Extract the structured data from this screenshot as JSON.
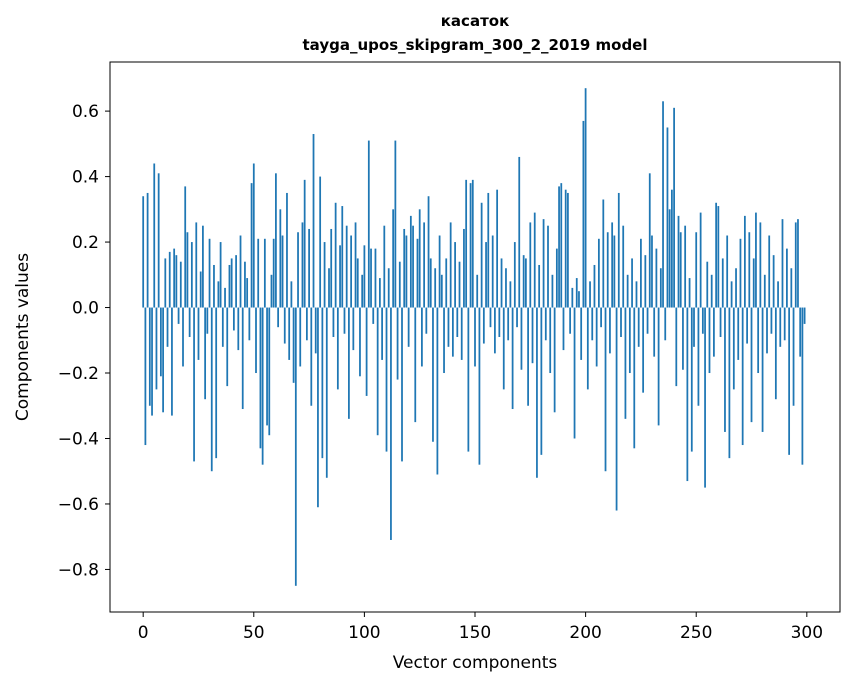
{
  "chart_data": {
    "type": "bar",
    "title_line1": "касаток",
    "title_line2": "tayga_upos_skipgram_300_2_2019 model",
    "xlabel": "Vector components",
    "ylabel": "Components values",
    "bar_color": "#1f77b4",
    "axis_color": "#000000",
    "background_color": "#ffffff",
    "xlim": [
      -15,
      315
    ],
    "ylim": [
      -0.93,
      0.75
    ],
    "xticks": [
      0,
      50,
      100,
      150,
      200,
      250,
      300
    ],
    "yticks": [
      -0.8,
      -0.6,
      -0.4,
      -0.2,
      0.0,
      0.2,
      0.4,
      0.6
    ],
    "x_start": 0,
    "bar_width": 0.8,
    "values": [
      0.34,
      -0.42,
      0.35,
      -0.3,
      -0.33,
      0.44,
      -0.25,
      0.41,
      -0.21,
      -0.32,
      0.15,
      -0.12,
      0.17,
      -0.33,
      0.18,
      0.16,
      -0.05,
      0.14,
      -0.18,
      0.37,
      0.23,
      -0.09,
      0.2,
      -0.47,
      0.26,
      -0.16,
      0.11,
      0.25,
      -0.28,
      -0.08,
      0.21,
      -0.5,
      0.13,
      -0.46,
      0.08,
      0.2,
      -0.12,
      0.06,
      -0.24,
      0.13,
      0.15,
      -0.07,
      0.16,
      -0.13,
      0.22,
      -0.31,
      0.14,
      0.09,
      -0.1,
      0.38,
      0.44,
      -0.2,
      0.21,
      -0.43,
      -0.48,
      0.21,
      -0.36,
      -0.39,
      0.1,
      0.21,
      0.41,
      -0.06,
      0.3,
      0.22,
      -0.11,
      0.35,
      -0.16,
      0.08,
      -0.23,
      -0.85,
      0.23,
      -0.18,
      0.26,
      0.39,
      -0.1,
      0.24,
      -0.3,
      0.53,
      -0.14,
      -0.61,
      0.4,
      -0.46,
      0.2,
      -0.52,
      0.12,
      0.24,
      -0.09,
      0.32,
      -0.25,
      0.19,
      0.31,
      -0.08,
      0.25,
      -0.34,
      0.22,
      -0.13,
      0.26,
      0.15,
      -0.21,
      0.1,
      0.19,
      -0.27,
      0.51,
      0.18,
      -0.05,
      0.18,
      -0.39,
      0.09,
      -0.16,
      0.25,
      -0.44,
      0.12,
      -0.71,
      0.3,
      0.51,
      -0.22,
      0.14,
      -0.47,
      0.24,
      0.22,
      -0.12,
      0.28,
      0.25,
      -0.35,
      0.21,
      0.3,
      -0.18,
      0.26,
      -0.08,
      0.34,
      0.15,
      -0.41,
      0.12,
      -0.51,
      0.22,
      0.1,
      -0.2,
      0.15,
      -0.12,
      0.26,
      -0.15,
      0.2,
      -0.09,
      0.14,
      -0.16,
      0.24,
      0.39,
      -0.44,
      0.38,
      0.39,
      -0.18,
      0.1,
      -0.48,
      0.32,
      -0.11,
      0.2,
      0.35,
      -0.06,
      0.22,
      -0.14,
      0.36,
      -0.09,
      0.15,
      -0.25,
      0.12,
      -0.1,
      0.08,
      -0.31,
      0.2,
      -0.06,
      0.46,
      -0.19,
      0.16,
      0.15,
      -0.3,
      0.26,
      -0.17,
      0.29,
      -0.52,
      0.13,
      -0.45,
      0.27,
      -0.1,
      0.25,
      -0.2,
      0.1,
      -0.32,
      0.18,
      0.37,
      0.38,
      -0.13,
      0.36,
      0.35,
      -0.08,
      0.06,
      -0.4,
      0.09,
      0.05,
      -0.16,
      0.57,
      0.67,
      -0.25,
      0.08,
      -0.1,
      0.13,
      -0.18,
      0.21,
      -0.06,
      0.33,
      -0.5,
      0.23,
      -0.14,
      0.26,
      0.22,
      -0.62,
      0.35,
      -0.09,
      0.25,
      -0.34,
      0.1,
      -0.2,
      0.15,
      -0.43,
      0.08,
      -0.12,
      0.21,
      -0.26,
      0.16,
      -0.08,
      0.41,
      0.22,
      -0.15,
      0.18,
      -0.36,
      0.12,
      0.63,
      -0.1,
      0.55,
      0.3,
      0.36,
      0.61,
      -0.24,
      0.28,
      0.23,
      -0.19,
      0.25,
      -0.53,
      0.09,
      -0.44,
      -0.12,
      0.23,
      -0.3,
      0.29,
      -0.08,
      -0.55,
      0.14,
      -0.2,
      0.1,
      -0.15,
      0.32,
      0.31,
      -0.09,
      0.15,
      -0.38,
      0.22,
      -0.46,
      0.08,
      -0.25,
      0.12,
      -0.16,
      0.21,
      -0.42,
      0.28,
      -0.11,
      0.23,
      -0.35,
      0.15,
      0.29,
      -0.2,
      0.26,
      -0.38,
      0.1,
      -0.14,
      0.22,
      -0.08,
      0.16,
      -0.28,
      0.08,
      -0.12,
      0.27,
      -0.1,
      0.18,
      -0.45,
      0.12,
      -0.3,
      0.26,
      0.27,
      -0.15,
      -0.48,
      -0.05
    ]
  }
}
